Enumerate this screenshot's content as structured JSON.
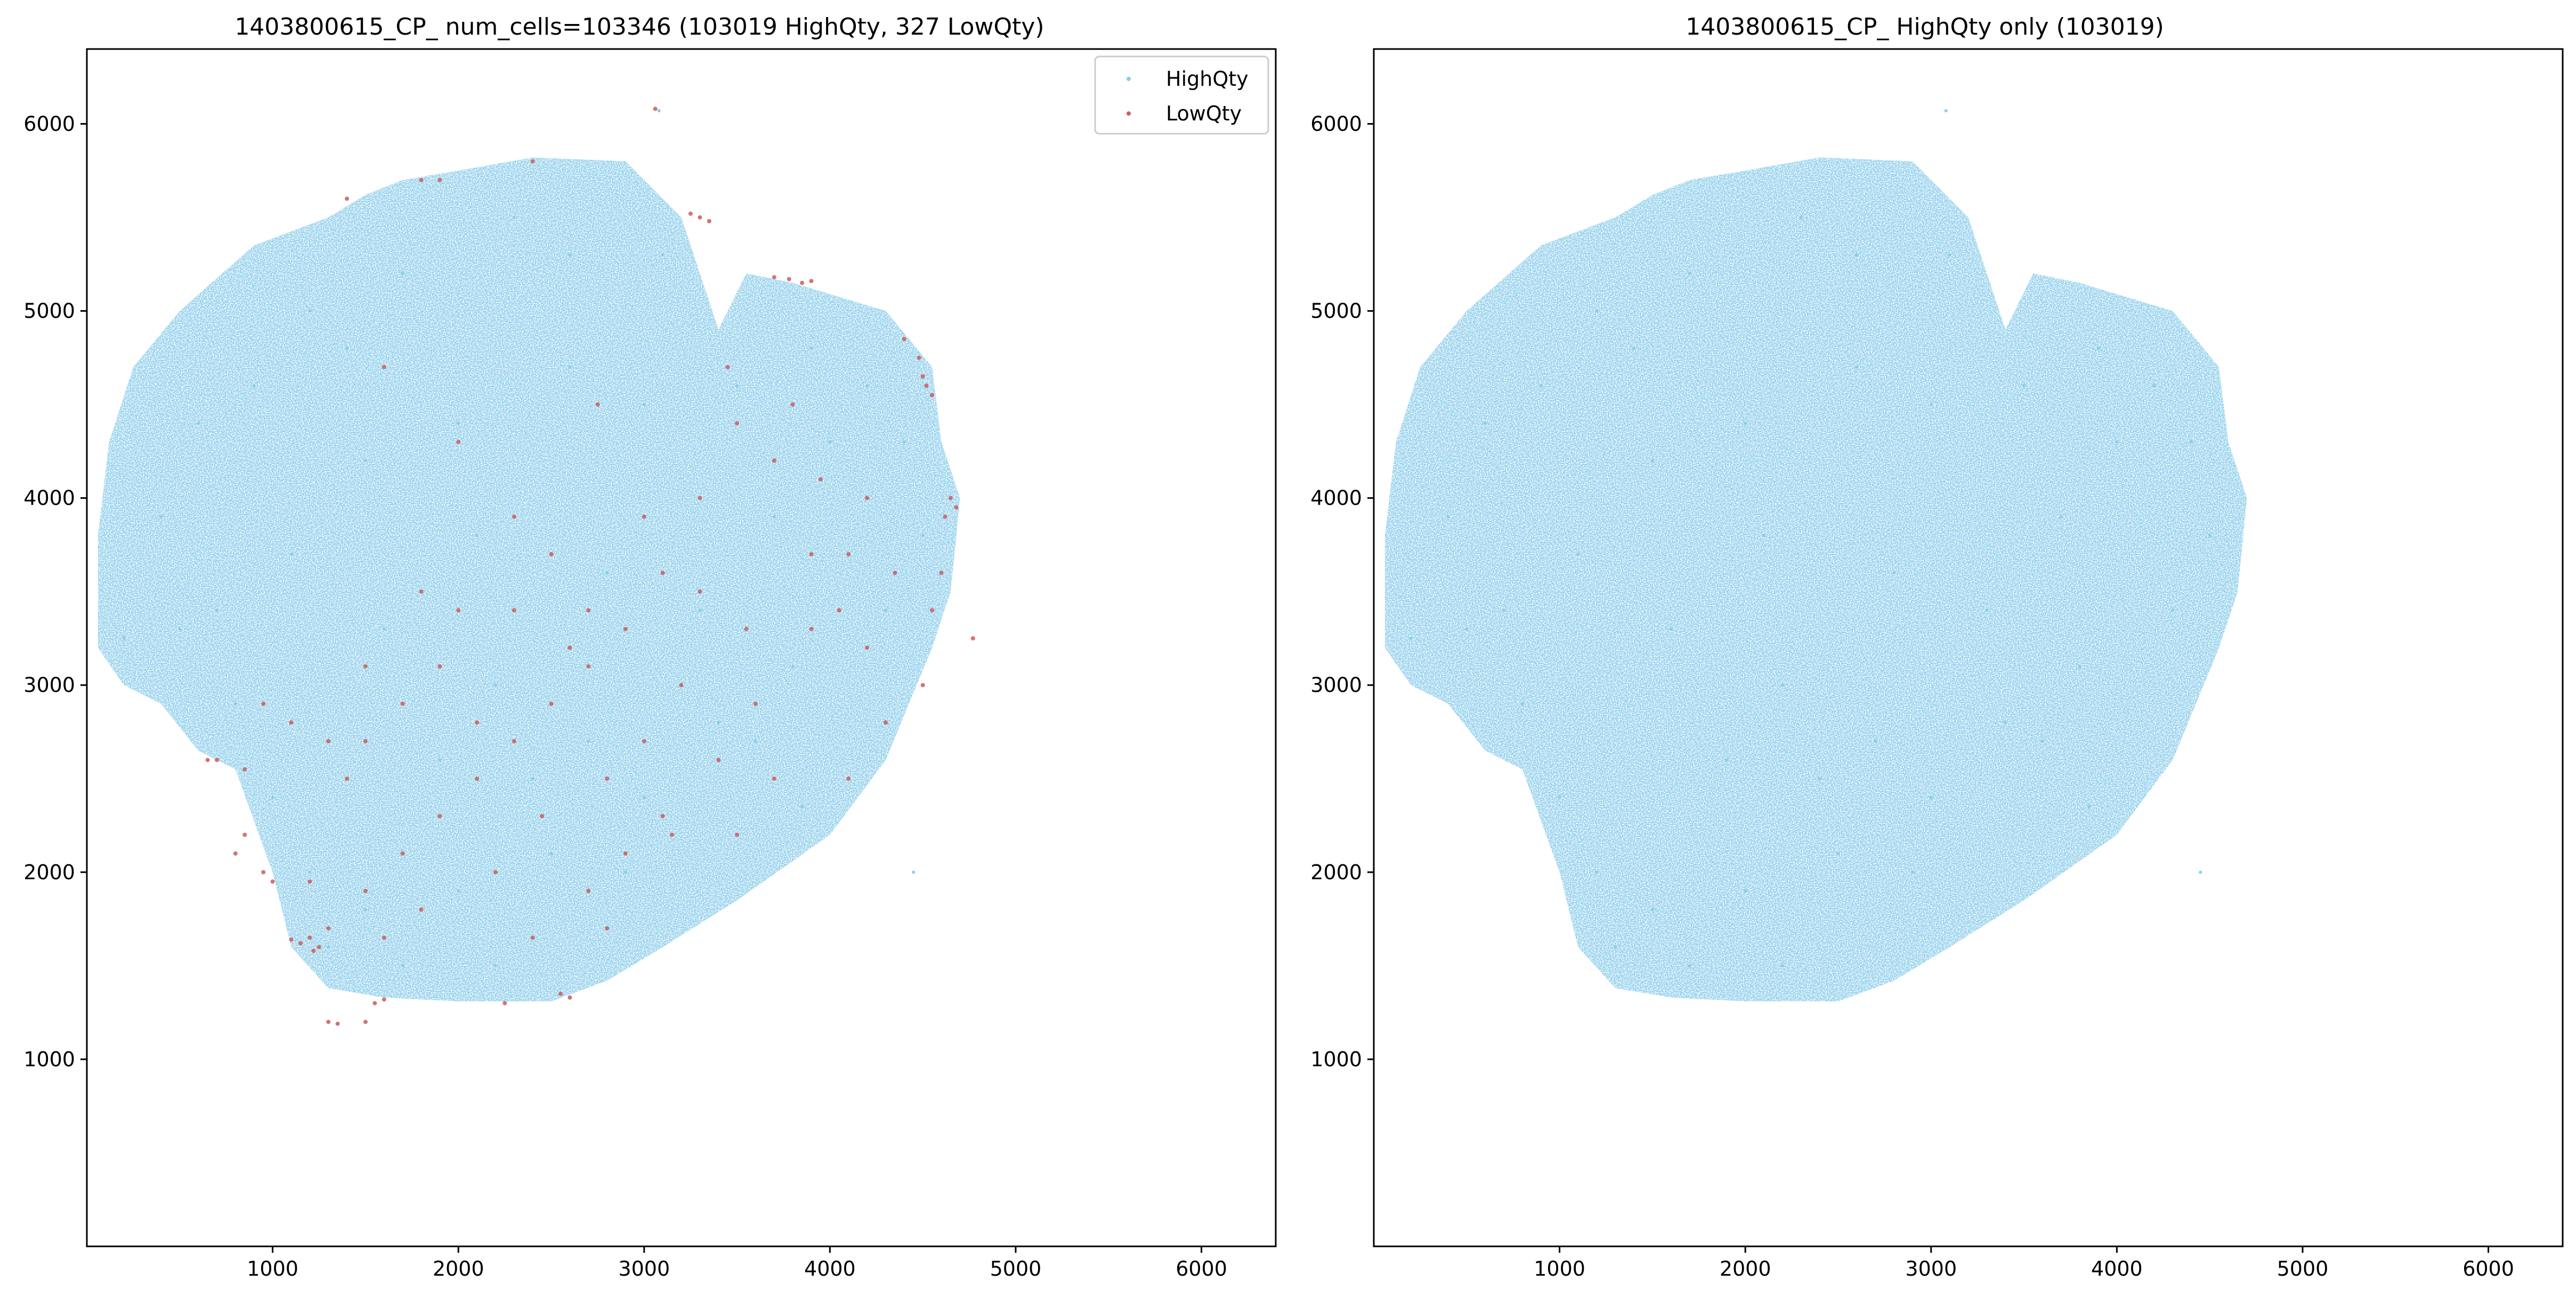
{
  "chart_data": [
    {
      "type": "scatter",
      "title": "1403800615_CP_ num_cells=103346 (103019 HighQty, 327 LowQty)",
      "xlim": [
        0,
        6400
      ],
      "ylim": [
        0,
        6400
      ],
      "x_ticks": [
        1000,
        2000,
        3000,
        4000,
        5000,
        6000
      ],
      "y_ticks": [
        1000,
        2000,
        3000,
        4000,
        5000,
        6000
      ],
      "legend_position": "top-right",
      "series": [
        {
          "name": "HighQty",
          "color": "#87ceeb",
          "count": 103019,
          "region_outline": [
            [
              60,
              3200
            ],
            [
              200,
              3000
            ],
            [
              400,
              2900
            ],
            [
              600,
              2650
            ],
            [
              800,
              2550
            ],
            [
              1000,
              2000
            ],
            [
              1100,
              1600
            ],
            [
              1300,
              1380
            ],
            [
              1600,
              1330
            ],
            [
              2000,
              1310
            ],
            [
              2500,
              1310
            ],
            [
              2800,
              1420
            ],
            [
              3100,
              1600
            ],
            [
              3500,
              1850
            ],
            [
              4000,
              2200
            ],
            [
              4300,
              2600
            ],
            [
              4550,
              3200
            ],
            [
              4650,
              3500
            ],
            [
              4700,
              4000
            ],
            [
              4600,
              4300
            ],
            [
              4550,
              4700
            ],
            [
              4300,
              5000
            ],
            [
              3800,
              5150
            ],
            [
              3550,
              5200
            ],
            [
              3400,
              4900
            ],
            [
              3300,
              5200
            ],
            [
              3200,
              5500
            ],
            [
              2900,
              5800
            ],
            [
              2400,
              5820
            ],
            [
              2000,
              5750
            ],
            [
              1700,
              5700
            ],
            [
              1500,
              5620
            ],
            [
              1300,
              5500
            ],
            [
              900,
              5350
            ],
            [
              500,
              5000
            ],
            [
              250,
              4700
            ],
            [
              120,
              4300
            ],
            [
              60,
              3800
            ]
          ],
          "points": [
            [
              3080,
              6070
            ],
            [
              200,
              3250
            ],
            [
              700,
              3400
            ],
            [
              900,
              4600
            ],
            [
              1200,
              5000
            ],
            [
              1700,
              5200
            ],
            [
              2300,
              5500
            ],
            [
              1500,
              4200
            ],
            [
              2000,
              4400
            ],
            [
              2600,
              4700
            ],
            [
              3000,
              4500
            ],
            [
              3500,
              4600
            ],
            [
              3900,
              4800
            ],
            [
              4200,
              4600
            ],
            [
              4400,
              4300
            ],
            [
              4500,
              3800
            ],
            [
              4300,
              3400
            ],
            [
              3800,
              3100
            ],
            [
              3400,
              2800
            ],
            [
              3000,
              2400
            ],
            [
              2500,
              2100
            ],
            [
              2000,
              1900
            ],
            [
              1500,
              1800
            ],
            [
              1200,
              2000
            ],
            [
              1000,
              2400
            ],
            [
              800,
              2900
            ],
            [
              500,
              3300
            ],
            [
              400,
              3900
            ],
            [
              600,
              4400
            ],
            [
              1100,
              3700
            ],
            [
              1600,
              3300
            ],
            [
              2200,
              3000
            ],
            [
              2700,
              2700
            ],
            [
              3300,
              3400
            ],
            [
              3700,
              3900
            ],
            [
              2800,
              3600
            ],
            [
              2100,
              3800
            ],
            [
              1400,
              4800
            ],
            [
              2600,
              5300
            ],
            [
              3100,
              5300
            ],
            [
              4000,
              4300
            ],
            [
              4450,
              2000
            ],
            [
              3850,
              2350
            ],
            [
              3600,
              2700
            ],
            [
              2900,
              2000
            ],
            [
              2200,
              1500
            ],
            [
              1700,
              1500
            ],
            [
              1300,
              1600
            ],
            [
              2400,
              2500
            ],
            [
              1900,
              2600
            ]
          ]
        },
        {
          "name": "LowQty",
          "color": "#cd5c5c",
          "count": 327,
          "points": [
            [
              3060,
              6080
            ],
            [
              3300,
              5500
            ],
            [
              3350,
              5480
            ],
            [
              3250,
              5520
            ],
            [
              3850,
              5150
            ],
            [
              3780,
              5170
            ],
            [
              3900,
              5160
            ],
            [
              3700,
              5180
            ],
            [
              4480,
              4750
            ],
            [
              4500,
              4650
            ],
            [
              4520,
              4600
            ],
            [
              4550,
              4550
            ],
            [
              4400,
              4850
            ],
            [
              4650,
              4000
            ],
            [
              4680,
              3950
            ],
            [
              4620,
              3900
            ],
            [
              4600,
              3600
            ],
            [
              4550,
              3400
            ],
            [
              4770,
              3250
            ],
            [
              4500,
              3000
            ],
            [
              4300,
              2800
            ],
            [
              4200,
              3200
            ],
            [
              4050,
              3400
            ],
            [
              3900,
              3700
            ],
            [
              3700,
              4200
            ],
            [
              3500,
              4400
            ],
            [
              3300,
              4000
            ],
            [
              3100,
              3600
            ],
            [
              2900,
              3300
            ],
            [
              2700,
              3100
            ],
            [
              2500,
              2900
            ],
            [
              2300,
              2700
            ],
            [
              2100,
              2500
            ],
            [
              1900,
              2300
            ],
            [
              1700,
              2100
            ],
            [
              1500,
              1900
            ],
            [
              1300,
              1700
            ],
            [
              1200,
              1650
            ],
            [
              1150,
              1620
            ],
            [
              1250,
              1600
            ],
            [
              1220,
              1580
            ],
            [
              1100,
              1640
            ],
            [
              1300,
              1200
            ],
            [
              1350,
              1190
            ],
            [
              1500,
              1200
            ],
            [
              1550,
              1300
            ],
            [
              1600,
              1320
            ],
            [
              2600,
              1330
            ],
            [
              2550,
              1350
            ],
            [
              2400,
              1650
            ],
            [
              2800,
              1700
            ],
            [
              2250,
              1300
            ],
            [
              950,
              2000
            ],
            [
              850,
              2200
            ],
            [
              800,
              2100
            ],
            [
              650,
              2600
            ],
            [
              700,
              2600
            ],
            [
              850,
              2550
            ],
            [
              950,
              2900
            ],
            [
              1100,
              2800
            ],
            [
              1300,
              2700
            ],
            [
              1500,
              3100
            ],
            [
              1700,
              2900
            ],
            [
              1900,
              3100
            ],
            [
              2100,
              2800
            ],
            [
              2300,
              3400
            ],
            [
              2500,
              3700
            ],
            [
              2700,
              3400
            ],
            [
              3000,
              3900
            ],
            [
              3200,
              3000
            ],
            [
              3400,
              2600
            ],
            [
              3600,
              2900
            ],
            [
              3900,
              3300
            ],
            [
              4100,
              2500
            ],
            [
              3100,
              2300
            ],
            [
              2900,
              2100
            ],
            [
              2700,
              1900
            ],
            [
              2200,
              2000
            ],
            [
              1800,
              1800
            ],
            [
              1400,
              2500
            ],
            [
              1200,
              1950
            ],
            [
              1000,
              1950
            ],
            [
              1600,
              1650
            ],
            [
              3800,
              4500
            ],
            [
              3450,
              4700
            ],
            [
              4200,
              4000
            ],
            [
              4350,
              3600
            ],
            [
              2300,
              3900
            ],
            [
              2600,
              3200
            ],
            [
              3300,
              3500
            ],
            [
              2000,
              3400
            ],
            [
              1800,
              3500
            ],
            [
              1500,
              2700
            ],
            [
              3000,
              2700
            ],
            [
              3150,
              2200
            ],
            [
              2450,
              2300
            ],
            [
              2800,
              2500
            ],
            [
              3500,
              2200
            ],
            [
              3700,
              2500
            ],
            [
              1900,
              5700
            ],
            [
              1800,
              5700
            ],
            [
              2400,
              5800
            ],
            [
              1600,
              4700
            ],
            [
              1400,
              5600
            ],
            [
              2000,
              4300
            ],
            [
              2750,
              4500
            ],
            [
              3950,
              4100
            ],
            [
              4100,
              3700
            ],
            [
              3550,
              3300
            ]
          ]
        }
      ]
    },
    {
      "type": "scatter",
      "title": "1403800615_CP_ HighQty only (103019)",
      "xlim": [
        0,
        6400
      ],
      "ylim": [
        0,
        6400
      ],
      "x_ticks": [
        1000,
        2000,
        3000,
        4000,
        5000,
        6000
      ],
      "y_ticks": [
        1000,
        2000,
        3000,
        4000,
        5000,
        6000
      ],
      "series": [
        {
          "color": "#87ceeb",
          "count": 103019,
          "same_as_series": "HighQty"
        }
      ]
    }
  ]
}
